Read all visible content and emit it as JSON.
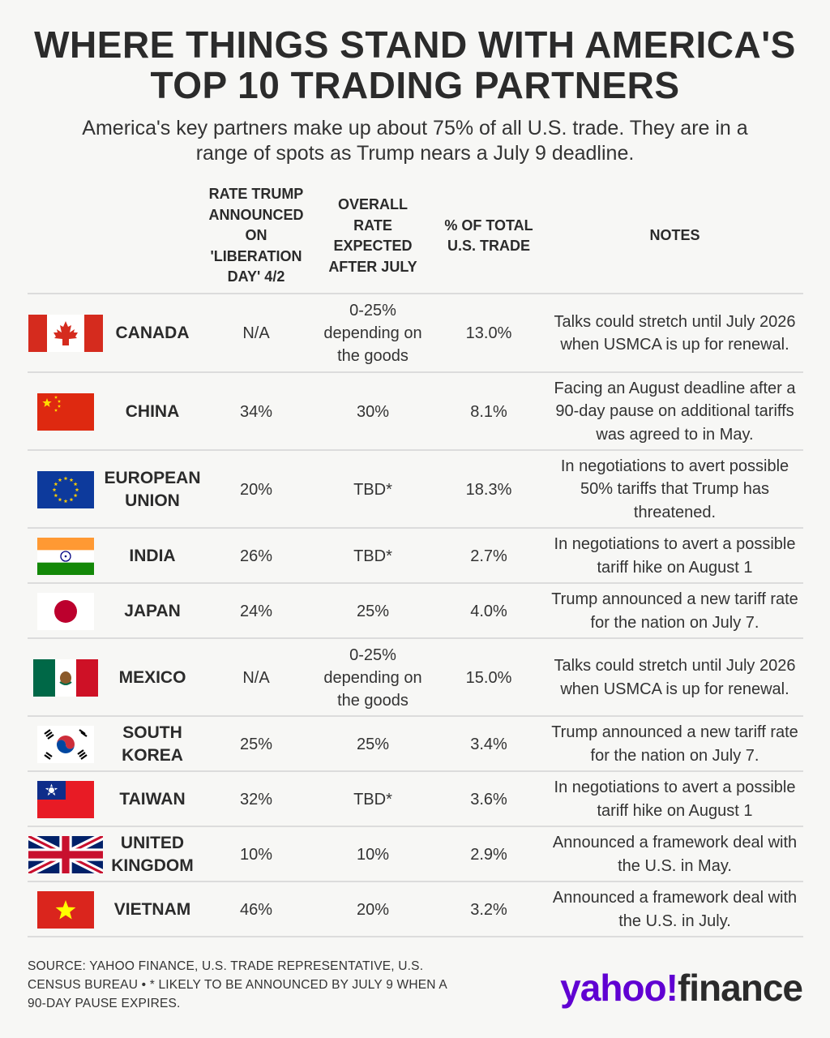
{
  "title_line1": "WHERE THINGS STAND WITH AMERICA'S",
  "title_line2": "TOP 10 TRADING PARTNERS",
  "subtitle_line1": "America's key partners make up about 75% of all U.S. trade. They are in a",
  "subtitle_line2": "range of spots as Trump nears a July 9 deadline.",
  "headers": {
    "rate": [
      "RATE TRUMP",
      "ANNOUNCED",
      "ON",
      "'LIBERATION",
      "DAY' 4/2"
    ],
    "overall": [
      "OVERALL",
      "RATE",
      "EXPECTED",
      "AFTER JULY"
    ],
    "share": [
      "% OF TOTAL",
      "U.S. TRADE"
    ],
    "notes": [
      "NOTES"
    ]
  },
  "rows": [
    {
      "flag": "canada-flag",
      "name": [
        "CANADA"
      ],
      "rate": "N/A",
      "overall": [
        "0-25%",
        "depending on",
        "the goods"
      ],
      "share": "13.0%",
      "notes": [
        "Talks could stretch until July 2026",
        "when USMCA is up for renewal."
      ]
    },
    {
      "flag": "china-flag",
      "name": [
        "CHINA"
      ],
      "rate": "34%",
      "overall": [
        "30%"
      ],
      "share": "8.1%",
      "notes": [
        "Facing an August deadline after a",
        "90-day pause on additional tariffs",
        "was agreed to in May."
      ]
    },
    {
      "flag": "eu-flag",
      "name": [
        "EUROPEAN",
        "UNION"
      ],
      "rate": "20%",
      "overall": [
        "TBD*"
      ],
      "share": "18.3%",
      "notes": [
        "In negotiations to avert possible",
        "50% tariffs that Trump has",
        "threatened."
      ]
    },
    {
      "flag": "india-flag",
      "name": [
        "INDIA"
      ],
      "rate": "26%",
      "overall": [
        "TBD*"
      ],
      "share": "2.7%",
      "notes": [
        "In negotiations to avert a possible",
        "tariff hike on August 1"
      ]
    },
    {
      "flag": "japan-flag",
      "name": [
        "JAPAN"
      ],
      "rate": "24%",
      "overall": [
        "25%"
      ],
      "share": "4.0%",
      "notes": [
        "Trump announced a new tariff rate",
        "for the nation on July 7."
      ]
    },
    {
      "flag": "mexico-flag",
      "name": [
        "MEXICO"
      ],
      "rate": "N/A",
      "overall": [
        "0-25%",
        "depending on",
        "the goods"
      ],
      "share": "15.0%",
      "notes": [
        "Talks could stretch until July 2026",
        "when USMCA is up for renewal."
      ]
    },
    {
      "flag": "south-korea-flag",
      "name": [
        "SOUTH",
        "KOREA"
      ],
      "rate": "25%",
      "overall": [
        "25%"
      ],
      "share": "3.4%",
      "notes": [
        "Trump announced a new tariff rate",
        "for the nation on July 7."
      ]
    },
    {
      "flag": "taiwan-flag",
      "name": [
        "TAIWAN"
      ],
      "rate": "32%",
      "overall": [
        "TBD*"
      ],
      "share": "3.6%",
      "notes": [
        "In negotiations to avert a possible",
        "tariff hike on August 1"
      ]
    },
    {
      "flag": "uk-flag",
      "name": [
        "UNITED",
        "KINGDOM"
      ],
      "rate": "10%",
      "overall": [
        "10%"
      ],
      "share": "2.9%",
      "notes": [
        "Announced a framework deal with",
        "the U.S. in May."
      ]
    },
    {
      "flag": "vietnam-flag",
      "name": [
        "VIETNAM"
      ],
      "rate": "46%",
      "overall": [
        "20%"
      ],
      "share": "3.2%",
      "notes": [
        "Announced a framework deal with",
        "the U.S. in July."
      ]
    }
  ],
  "footer": [
    "SOURCE: YAHOO FINANCE, U.S. TRADE REPRESENTATIVE, U.S.",
    "CENSUS BUREAU • * LIKELY TO BE ANNOUNCED BY JULY 9 WHEN A",
    "90-DAY PAUSE EXPIRES."
  ],
  "logo": {
    "yahoo": "yahoo!",
    "finance": "finance"
  },
  "colors": {
    "yahoo_purple": "#6001d2",
    "divider": "#dcdcdc",
    "text": "#2b2b2b"
  }
}
